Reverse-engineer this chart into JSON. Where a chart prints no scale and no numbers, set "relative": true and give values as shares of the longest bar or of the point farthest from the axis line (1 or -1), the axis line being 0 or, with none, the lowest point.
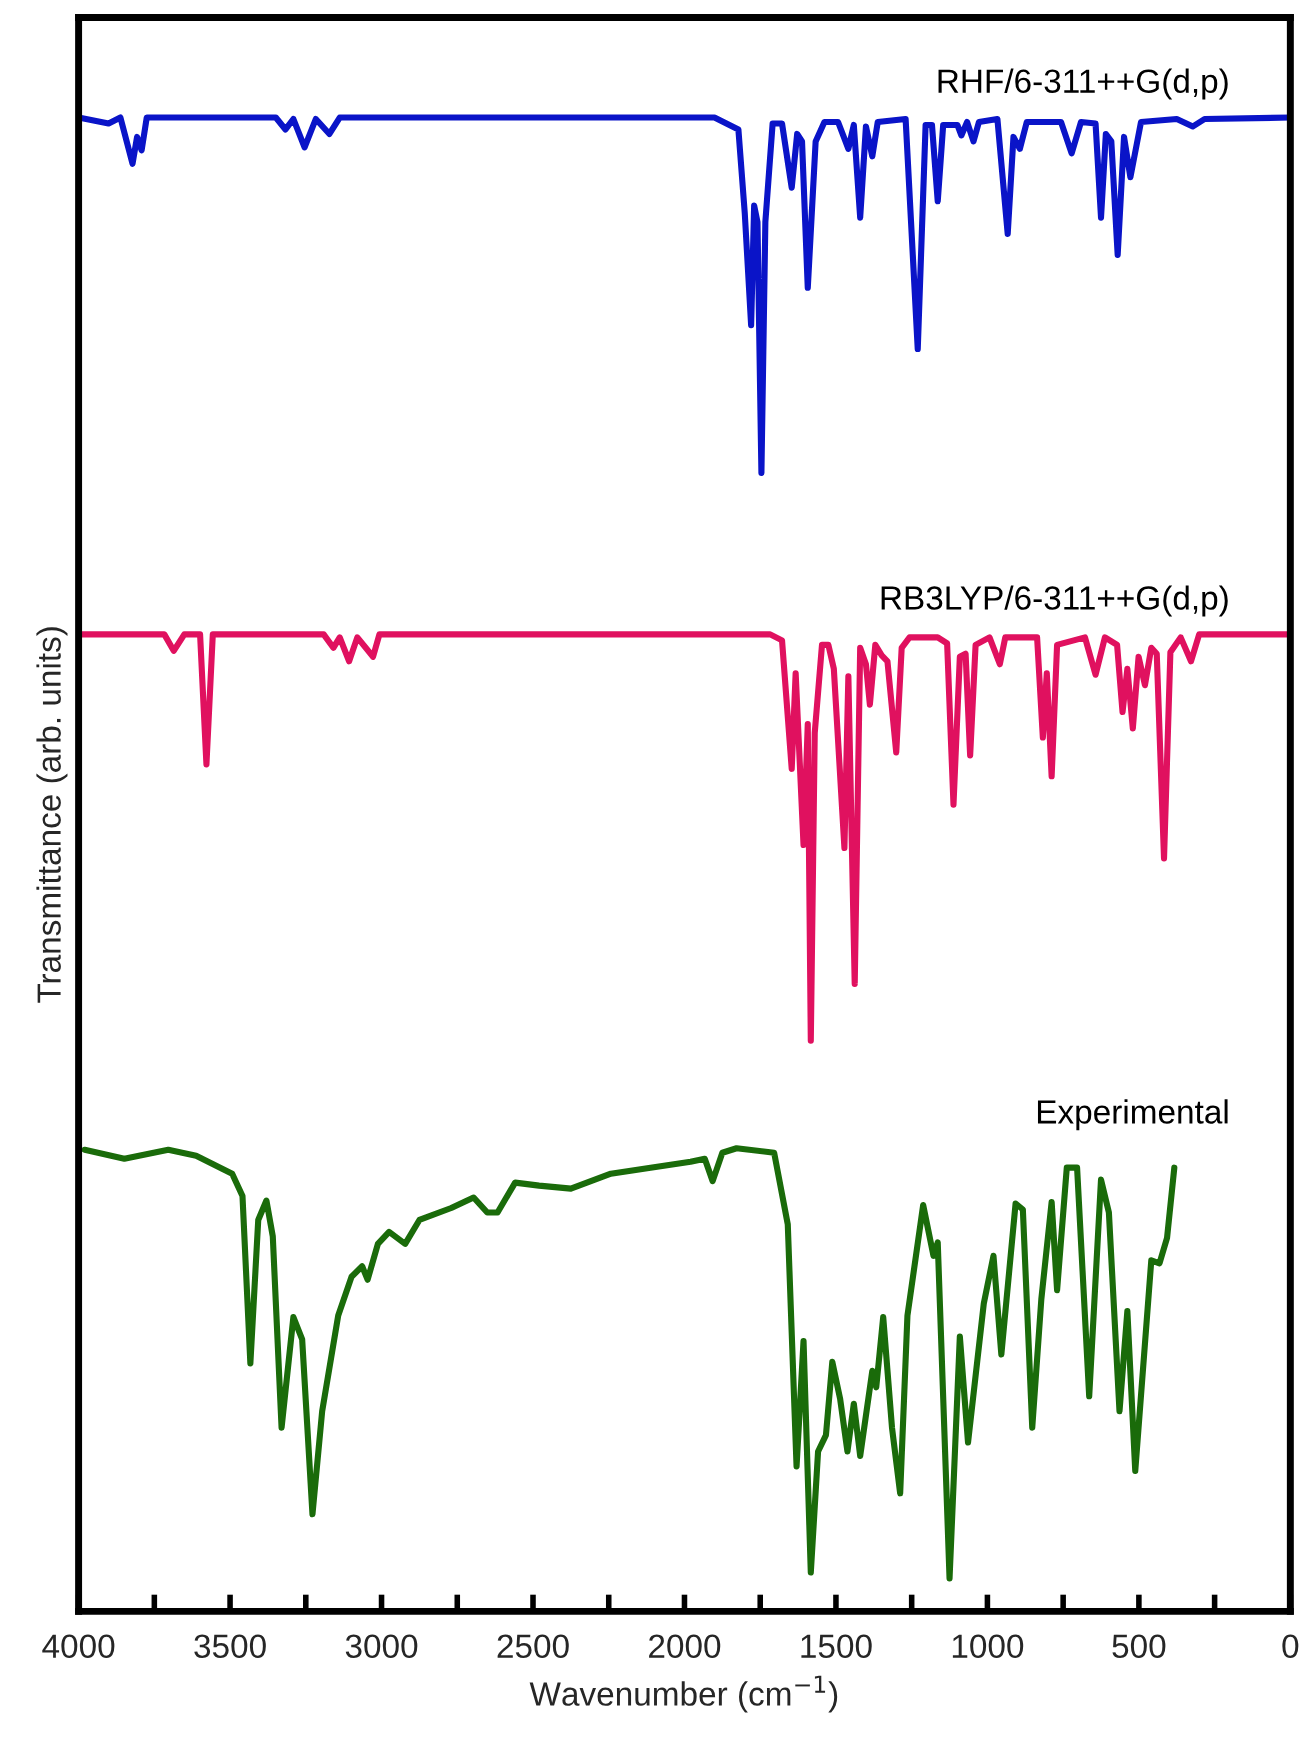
{
  "chart_data": {
    "type": "line",
    "relative": true,
    "xlabel": "Wavenumber (cm$^{−1}$)",
    "ylabel": "Transmittance (arb. units)",
    "xlim": [
      4000,
      0
    ],
    "xticks": [
      4000,
      {
        "value": 3750,
        "label": null
      },
      3500,
      {
        "value": 3250,
        "label": null
      },
      3000,
      {
        "value": 2750,
        "label": null
      },
      2500,
      {
        "value": 2250,
        "label": null
      },
      2000,
      {
        "value": 1750,
        "label": null
      },
      1500,
      {
        "value": 1250,
        "label": null
      },
      1000,
      {
        "value": 750,
        "label": null
      },
      500,
      {
        "value": 250,
        "label": null
      },
      0
    ],
    "grid": false,
    "legend": false,
    "line_style": "solid",
    "marker": "none",
    "series": [
      {
        "name": "RHF/6-311++G(d,p)",
        "color": "#0a14c8",
        "x": [
          4000,
          3901,
          3862,
          3822,
          3807,
          3792,
          3775,
          3349,
          3317,
          3291,
          3254,
          3217,
          3172,
          3138,
          1901,
          1822,
          1801,
          1780,
          1770,
          1759,
          1746,
          1733,
          1709,
          1678,
          1646,
          1628,
          1612,
          1593,
          1567,
          1538,
          1493,
          1459,
          1441,
          1420,
          1401,
          1380,
          1362,
          1270,
          1230,
          1204,
          1183,
          1164,
          1146,
          1099,
          1086,
          1067,
          1046,
          1028,
          967,
          933,
          914,
          893,
          870,
          757,
          722,
          691,
          643,
          625,
          609,
          591,
          570,
          549,
          528,
          493,
          375,
          322,
          283,
          0
        ],
        "values": [
          1.0,
          0.996,
          1.0,
          0.969,
          0.987,
          0.978,
          1.0,
          1.0,
          0.992,
          0.999,
          0.98,
          0.999,
          0.989,
          1.0,
          1.0,
          0.992,
          0.936,
          0.861,
          0.941,
          0.93,
          0.762,
          0.93,
          0.996,
          0.996,
          0.953,
          0.989,
          0.984,
          0.886,
          0.984,
          0.997,
          0.997,
          0.979,
          0.995,
          0.933,
          0.994,
          0.974,
          0.997,
          0.999,
          0.845,
          0.995,
          0.995,
          0.944,
          0.995,
          0.995,
          0.988,
          0.997,
          0.984,
          0.997,
          0.999,
          0.922,
          0.987,
          0.979,
          0.997,
          0.997,
          0.976,
          0.997,
          0.996,
          0.933,
          0.989,
          0.984,
          0.908,
          0.987,
          0.96,
          0.997,
          0.999,
          0.994,
          0.999,
          1.0
        ]
      },
      {
        "name": "RB3LYP/6-311++G(d,p)",
        "color": "#e0115f",
        "x": [
          4000,
          3717,
          3686,
          3651,
          3599,
          3578,
          3557,
          3191,
          3159,
          3138,
          3107,
          3080,
          3028,
          3007,
          1717,
          1678,
          1646,
          1633,
          1607,
          1593,
          1583,
          1570,
          1546,
          1525,
          1507,
          1472,
          1459,
          1438,
          1420,
          1401,
          1388,
          1370,
          1349,
          1330,
          1301,
          1283,
          1257,
          1164,
          1133,
          1112,
          1091,
          1072,
          1057,
          1039,
          993,
          959,
          941,
          836,
          817,
          804,
          788,
          770,
          678,
          643,
          612,
          572,
          554,
          538,
          520,
          501,
          480,
          459,
          441,
          417,
          396,
          362,
          328,
          301,
          0
        ],
        "values": [
          0.654,
          0.654,
          0.643,
          0.654,
          0.654,
          0.567,
          0.654,
          0.654,
          0.645,
          0.652,
          0.636,
          0.652,
          0.639,
          0.654,
          0.654,
          0.65,
          0.564,
          0.628,
          0.513,
          0.594,
          0.382,
          0.588,
          0.647,
          0.647,
          0.631,
          0.511,
          0.626,
          0.42,
          0.645,
          0.634,
          0.607,
          0.647,
          0.64,
          0.636,
          0.575,
          0.645,
          0.652,
          0.652,
          0.648,
          0.54,
          0.639,
          0.641,
          0.573,
          0.647,
          0.652,
          0.634,
          0.652,
          0.652,
          0.585,
          0.628,
          0.559,
          0.647,
          0.652,
          0.627,
          0.652,
          0.647,
          0.602,
          0.631,
          0.591,
          0.639,
          0.62,
          0.645,
          0.641,
          0.504,
          0.642,
          0.652,
          0.636,
          0.654,
          0.654
        ]
      },
      {
        "name": "Experimental",
        "color": "#1a6b0a",
        "x": [
          3980,
          3849,
          3704,
          3612,
          3493,
          3459,
          3433,
          3407,
          3380,
          3359,
          3330,
          3291,
          3262,
          3228,
          3196,
          3143,
          3099,
          3064,
          3046,
          3012,
          2975,
          2922,
          2875,
          2770,
          2696,
          2651,
          2617,
          2559,
          2480,
          2375,
          2243,
          2112,
          1980,
          1933,
          1907,
          1875,
          1828,
          1704,
          1659,
          1630,
          1607,
          1583,
          1559,
          1533,
          1512,
          1486,
          1462,
          1441,
          1420,
          1380,
          1367,
          1344,
          1315,
          1288,
          1264,
          1212,
          1178,
          1164,
          1125,
          1091,
          1064,
          1012,
          980,
          954,
          907,
          883,
          852,
          822,
          788,
          770,
          738,
          704,
          664,
          625,
          599,
          564,
          538,
          512,
          459,
          432,
          407,
          383
        ],
        "values": [
          0.309,
          0.303,
          0.309,
          0.305,
          0.293,
          0.278,
          0.166,
          0.262,
          0.275,
          0.251,
          0.123,
          0.197,
          0.182,
          0.065,
          0.134,
          0.198,
          0.224,
          0.231,
          0.222,
          0.246,
          0.254,
          0.246,
          0.262,
          0.27,
          0.277,
          0.267,
          0.267,
          0.287,
          0.285,
          0.283,
          0.293,
          0.297,
          0.301,
          0.303,
          0.288,
          0.307,
          0.31,
          0.307,
          0.259,
          0.097,
          0.181,
          0.026,
          0.107,
          0.118,
          0.167,
          0.142,
          0.107,
          0.139,
          0.104,
          0.161,
          0.15,
          0.197,
          0.123,
          0.079,
          0.198,
          0.272,
          0.238,
          0.247,
          0.022,
          0.184,
          0.113,
          0.206,
          0.238,
          0.172,
          0.273,
          0.269,
          0.123,
          0.209,
          0.274,
          0.215,
          0.297,
          0.297,
          0.144,
          0.289,
          0.267,
          0.134,
          0.201,
          0.094,
          0.235,
          0.233,
          0.25,
          0.297
        ]
      }
    ]
  }
}
